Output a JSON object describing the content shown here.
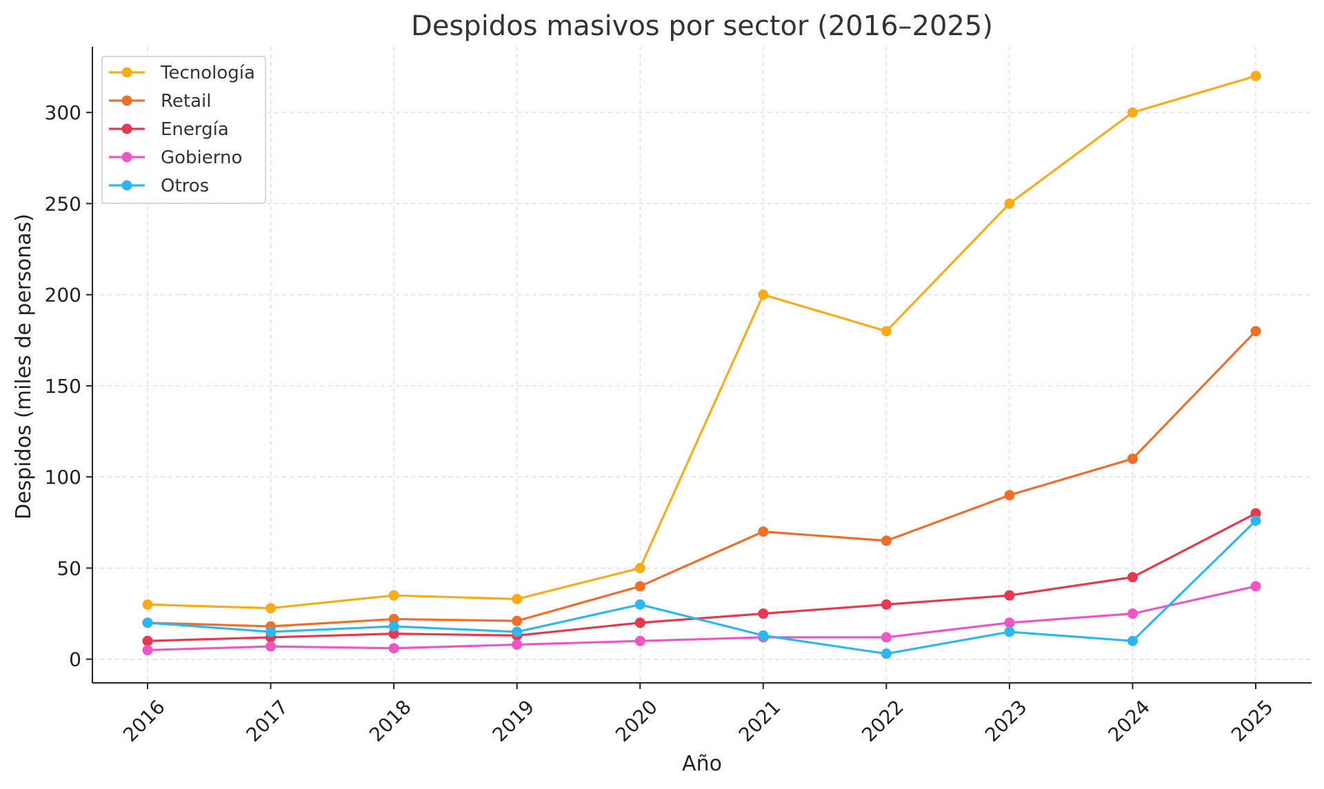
{
  "chart_data": {
    "type": "line",
    "title": "Despidos masivos por sector (2016–2025)",
    "xlabel": "Año",
    "ylabel": "Despidos (miles de personas)",
    "x": [
      2016,
      2017,
      2018,
      2019,
      2020,
      2021,
      2022,
      2023,
      2024,
      2025
    ],
    "x_tick_labels": [
      "2016",
      "2017",
      "2018",
      "2019",
      "2020",
      "2021",
      "2022",
      "2023",
      "2024",
      "2025"
    ],
    "ylim": [
      -13,
      336
    ],
    "y_ticks": [
      0,
      50,
      100,
      150,
      200,
      250,
      300
    ],
    "y_tick_labels": [
      "0",
      "50",
      "100",
      "150",
      "200",
      "250",
      "300"
    ],
    "grid": true,
    "legend_position": "top-left",
    "series": [
      {
        "name": "Tecnología",
        "color": "#FAAB18",
        "values": [
          30,
          28,
          35,
          33,
          50,
          200,
          180,
          250,
          300,
          320
        ]
      },
      {
        "name": "Retail",
        "color": "#F06D2A",
        "values": [
          20,
          18,
          22,
          21,
          40,
          70,
          65,
          90,
          110,
          180
        ]
      },
      {
        "name": "Energía",
        "color": "#E8384F",
        "values": [
          10,
          12,
          14,
          13,
          20,
          25,
          30,
          35,
          45,
          80
        ]
      },
      {
        "name": "Gobierno",
        "color": "#F055C4",
        "values": [
          5,
          7,
          6,
          8,
          10,
          12,
          12,
          20,
          25,
          40
        ]
      },
      {
        "name": "Otros",
        "color": "#2DB7F2",
        "values": [
          20,
          15,
          18,
          15,
          30,
          13,
          3,
          15,
          10,
          76
        ]
      }
    ]
  }
}
